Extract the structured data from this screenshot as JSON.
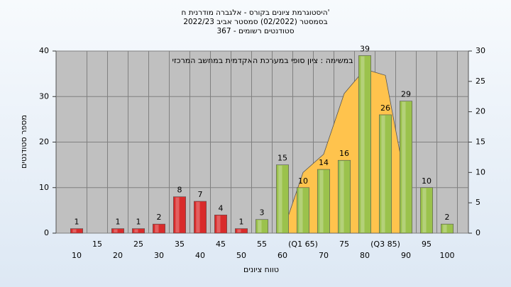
{
  "chart_data": {
    "type": "bar",
    "title": [
      "היסטוגרמת ציונים בקורס - אלגברה מודרנית ח'",
      "בסמסטר  (02/2022)  סמסטר אביב 2022/23",
      "סטודנטים רשומים - 367"
    ],
    "annotation": "במשימה : ציון סופי במערכת האקדמית במחשב המרכזי",
    "x_label": "טווח ציונים",
    "y_label": "מספר סטודנטים",
    "categories": [
      "10",
      "15",
      "20",
      "25",
      "30",
      "35",
      "40",
      "45",
      "50",
      "55",
      "60",
      "(Q1 65)",
      "70",
      "75",
      "80",
      "(Q3 85)",
      "90",
      "95",
      "100"
    ],
    "values": [
      1,
      null,
      1,
      1,
      2,
      8,
      7,
      4,
      1,
      3,
      15,
      10,
      14,
      16,
      39,
      26,
      29,
      10,
      2
    ],
    "colors": [
      "#d92b2b",
      "#d92b2b",
      "#d92b2b",
      "#d92b2b",
      "#d92b2b",
      "#d92b2b",
      "#d92b2b",
      "#d92b2b",
      "#d92b2b",
      "#9bc24c",
      "#9bc24c",
      "#9bc24c",
      "#9bc24c",
      "#9bc24c",
      "#9bc24c",
      "#9bc24c",
      "#9bc24c",
      "#9bc24c",
      "#9bc24c"
    ],
    "area": {
      "axis": "y2",
      "color": "#ffc34d",
      "values": [
        null,
        null,
        null,
        null,
        null,
        null,
        null,
        null,
        null,
        null,
        0,
        10,
        13,
        23,
        27,
        26,
        8,
        null,
        null
      ]
    },
    "ylim": [
      0,
      40
    ],
    "yticks": [
      0,
      10,
      20,
      30,
      40
    ],
    "y2lim": [
      0,
      30
    ],
    "y2ticks": [
      0,
      5,
      10,
      15,
      20,
      25,
      30
    ],
    "grid": true
  }
}
